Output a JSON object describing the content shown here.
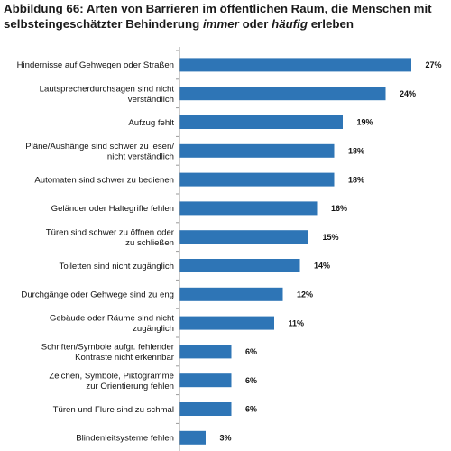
{
  "title": {
    "line1": "Abbildung 66: Arten von Barrieren im öffentlichen Raum, die Menschen mit",
    "line2_prefix": "selbsteingeschätzter Behinderung",
    "line2_em1": "immer",
    "line2_mid": "oder",
    "line2_em2": "häufig",
    "line2_suffix": "erleben"
  },
  "chart_data": {
    "type": "bar",
    "orientation": "horizontal",
    "categories": [
      [
        "Hindernisse auf Gehwegen oder Straßen"
      ],
      [
        "Lautsprecherdurchsagen sind nicht",
        "verständlich"
      ],
      [
        "Aufzug fehlt"
      ],
      [
        "Pläne/Aushänge sind schwer zu lesen/",
        "nicht verständlich"
      ],
      [
        "Automaten sind schwer zu bedienen"
      ],
      [
        "Geländer oder Haltegriffe fehlen"
      ],
      [
        "Türen sind schwer zu öffnen oder",
        "zu schließen"
      ],
      [
        "Toiletten sind nicht zugänglich"
      ],
      [
        "Durchgänge oder Gehwege sind zu eng"
      ],
      [
        "Gebäude oder Räume sind nicht",
        "zugänglich"
      ],
      [
        "Schriften/Symbole aufgr. fehlender",
        "Kontraste nicht erkennbar"
      ],
      [
        "Zeichen, Symbole, Piktogramme",
        "zur Orientierung fehlen"
      ],
      [
        "Türen und Flure sind zu schmal"
      ],
      [
        "Blindenleitsysteme fehlen"
      ]
    ],
    "values": [
      27,
      24,
      19,
      18,
      18,
      16,
      15,
      14,
      12,
      11,
      6,
      6,
      6,
      3
    ],
    "value_labels": [
      "27%",
      "24%",
      "19%",
      "18%",
      "18%",
      "16%",
      "15%",
      "14%",
      "12%",
      "11%",
      "6%",
      "6%",
      "6%",
      "3%"
    ],
    "xlim": [
      0,
      30
    ],
    "grid": false,
    "bar_color": "#2e75b6"
  }
}
